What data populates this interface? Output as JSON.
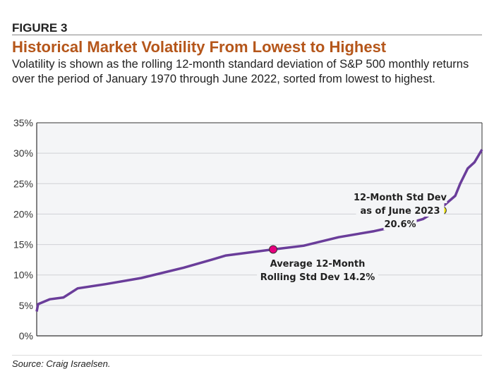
{
  "figure_label": "FIGURE 3",
  "title": "Historical Market Volatility From Lowest to Highest",
  "subtitle": "Volatility is shown as the rolling 12-month standard deviation of S&P 500 monthly returns over the period of January 1970 through June 2022, sorted from lowest to highest.",
  "source": "Source: Craig Israelsen.",
  "chart_data": {
    "type": "line",
    "title": "",
    "xlabel": "",
    "ylabel": "",
    "ylim": [
      0,
      35
    ],
    "yticks": [
      "0%",
      "5%",
      "10%",
      "15%",
      "20%",
      "25%",
      "30%",
      "35%"
    ],
    "grid": true,
    "line_color": "#6a3d9a",
    "background": "#f4f5f7",
    "series": [
      {
        "x_percentile": [
          0,
          0.3,
          2.9,
          6.0,
          9.2,
          15.5,
          23.5,
          33.0,
          39.3,
          42.5,
          53.1,
          59.9,
          67.8,
          75.8,
          82.1,
          86.8,
          90.8,
          94.0,
          95.1,
          96.8,
          98.3,
          100
        ],
        "values": [
          4.0,
          5.2,
          6.0,
          6.3,
          7.8,
          8.5,
          9.5,
          11.2,
          12.5,
          13.2,
          14.2,
          14.8,
          16.2,
          17.2,
          18.2,
          19.2,
          21.0,
          23.0,
          25.0,
          27.5,
          28.5,
          30.6
        ]
      }
    ],
    "annotations": [
      {
        "label_lines": [
          "Average 12-Month",
          "Rolling Std Dev 14.2%"
        ],
        "x_percentile": 53.1,
        "value": 14.2,
        "color": "#e6007e"
      },
      {
        "label_lines": [
          "12-Month Std Dev",
          "as of June 2023",
          "20.6%"
        ],
        "x_percentile": 91.1,
        "value": 20.6,
        "color": "#f5e800"
      }
    ]
  }
}
